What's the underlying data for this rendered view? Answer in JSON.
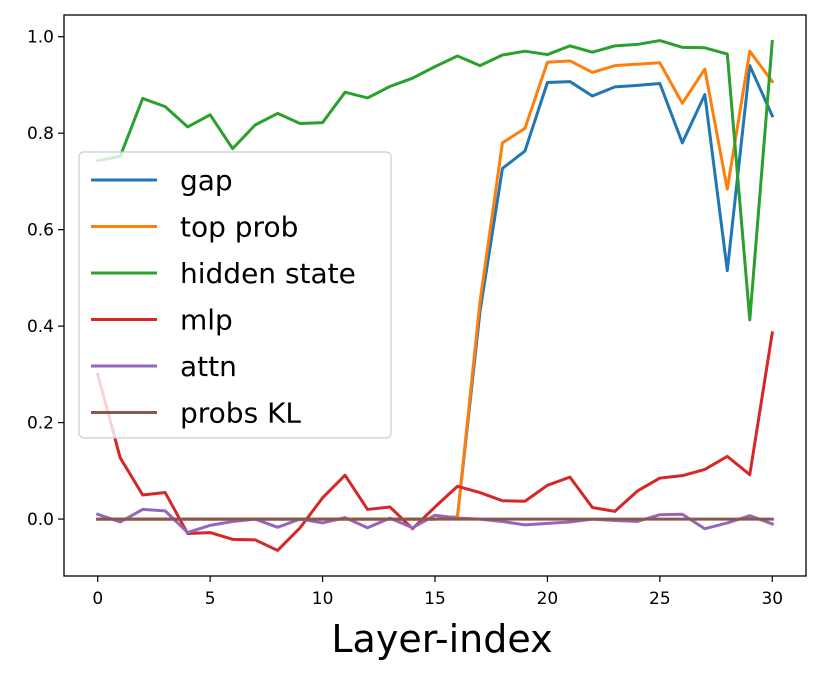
{
  "chart_data": {
    "type": "line",
    "title": "",
    "xlabel": "Layer-index",
    "ylabel": "",
    "xlim": [
      -1.5,
      31.5
    ],
    "ylim": [
      -0.118,
      1.045
    ],
    "xticks": [
      0,
      5,
      10,
      15,
      20,
      25,
      30
    ],
    "yticks": [
      0.0,
      0.2,
      0.4,
      0.6,
      0.8,
      1.0
    ],
    "ytick_labels": [
      "0.0",
      "0.2",
      "0.4",
      "0.6",
      "0.8",
      "1.0"
    ],
    "grid": false,
    "legend_position": "center-left",
    "x": [
      0,
      1,
      2,
      3,
      4,
      5,
      6,
      7,
      8,
      9,
      10,
      11,
      12,
      13,
      14,
      15,
      16,
      17,
      18,
      19,
      20,
      21,
      22,
      23,
      24,
      25,
      26,
      27,
      28,
      29,
      30
    ],
    "series": [
      {
        "name": "gap",
        "color": "#1f77b4",
        "values": [
          0.0,
          0.0,
          0.0,
          0.0,
          0.0,
          0.0,
          0.0,
          0.0,
          0.0,
          0.0,
          0.0,
          0.0,
          0.0,
          0.0,
          0.0,
          0.0,
          0.005,
          0.43,
          0.727,
          0.763,
          0.905,
          0.907,
          0.877,
          0.896,
          0.899,
          0.903,
          0.78,
          0.88,
          0.515,
          0.94,
          0.836
        ]
      },
      {
        "name": "top prob",
        "color": "#ff7f0e",
        "values": [
          0.0,
          0.0,
          0.0,
          0.0,
          0.0,
          0.0,
          0.0,
          0.0,
          0.0,
          0.0,
          0.0,
          0.0,
          0.0,
          0.0,
          0.0,
          0.0,
          0.005,
          0.45,
          0.78,
          0.81,
          0.947,
          0.95,
          0.926,
          0.94,
          0.943,
          0.946,
          0.862,
          0.933,
          0.684,
          0.97,
          0.907
        ]
      },
      {
        "name": "hidden state",
        "color": "#2ca02c",
        "values": [
          0.743,
          0.752,
          0.872,
          0.855,
          0.813,
          0.838,
          0.768,
          0.817,
          0.841,
          0.82,
          0.822,
          0.885,
          0.873,
          0.897,
          0.914,
          0.938,
          0.96,
          0.94,
          0.962,
          0.97,
          0.963,
          0.981,
          0.968,
          0.981,
          0.984,
          0.992,
          0.978,
          0.977,
          0.964,
          0.413,
          0.99
        ]
      },
      {
        "name": "mlp",
        "color": "#d62728",
        "values": [
          0.3,
          0.127,
          0.05,
          0.055,
          -0.03,
          -0.028,
          -0.042,
          -0.043,
          -0.065,
          -0.018,
          0.044,
          0.091,
          0.02,
          0.025,
          -0.02,
          0.025,
          0.068,
          0.055,
          0.038,
          0.037,
          0.07,
          0.087,
          0.024,
          0.016,
          0.058,
          0.085,
          0.09,
          0.103,
          0.13,
          0.092,
          0.386
        ]
      },
      {
        "name": "attn",
        "color": "#9467bd",
        "values": [
          0.01,
          -0.006,
          0.02,
          0.017,
          -0.028,
          -0.013,
          -0.005,
          0.0,
          -0.017,
          0.0,
          -0.008,
          0.003,
          -0.018,
          0.002,
          -0.018,
          0.008,
          0.002,
          0.0,
          -0.005,
          -0.012,
          -0.009,
          -0.006,
          0.0,
          -0.003,
          -0.005,
          0.009,
          0.01,
          -0.02,
          -0.008,
          0.007,
          -0.01
        ]
      },
      {
        "name": "probs KL",
        "color": "#8c564b",
        "values": [
          0.0,
          0.0,
          0.0,
          0.0,
          0.0,
          0.0,
          0.0,
          0.0,
          0.0,
          0.0,
          0.0,
          0.0,
          0.0,
          0.0,
          0.0,
          0.0,
          0.0,
          0.0,
          0.0,
          0.0,
          0.0,
          0.0,
          0.0,
          0.0,
          0.0,
          0.0,
          0.0,
          0.0,
          0.0,
          0.0,
          0.0
        ]
      }
    ]
  }
}
